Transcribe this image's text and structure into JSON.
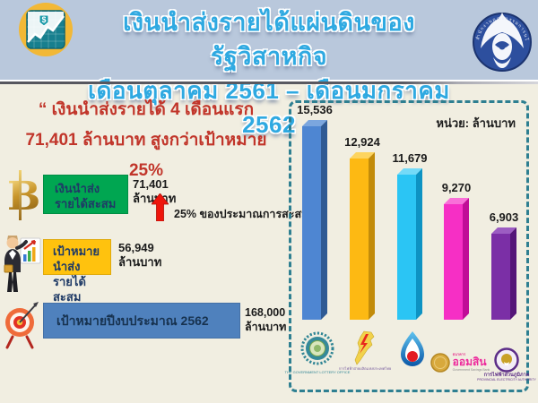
{
  "header": {
    "title_line1": "เงินนำส่งรายได้แผ่นดินของรัฐวิสาหกิจ",
    "title_line2": "เดือนตุลาคม 2561 – เดือนมกราคม 2562",
    "title_color": "#2fa9e1",
    "background_color": "#b9c8dc",
    "right_logo_ring_text": "สำนักงานคณะกรรมการนโยบายรัฐวิสาหกิจ"
  },
  "highlight": {
    "line1": "“ เงินนำส่งรายได้ 4 เดือนแรก",
    "line2": "71,401 ล้านบาท สูงกว่าเป้าหมาย 25%",
    "color": "#c1352a"
  },
  "summary_rows": [
    {
      "icon": "baht-coin-icon",
      "label_line1": "เงินนำส่ง",
      "label_line2": "รายได้สะสม",
      "value": "71,401",
      "unit": "ล้านบาท",
      "box_color": "#00a651"
    },
    {
      "icon": "businessman-chart-icon",
      "label_line1": "เป้าหมายนำส่ง",
      "label_line2": "รายได้สะสม",
      "value": "56,949",
      "unit": "ล้านบาท",
      "box_color": "#ffc20e"
    },
    {
      "icon": "target-dart-icon",
      "label_line1": "เป้าหมายปีงบประมาณ 2562",
      "label_line2": "",
      "value": "168,000",
      "unit": "ล้านบาท",
      "box_color": "#4f81bd"
    }
  ],
  "annotation": {
    "arrow_direction": "up",
    "arrow_color": "#ee160c",
    "text": "25% ของประมาณการสะสม"
  },
  "chart_data": {
    "type": "bar",
    "unit_label": "หน่วย: ล้านบาท",
    "border_color": "#2e7f91",
    "ylim": [
      0,
      16000
    ],
    "legend_position": "none",
    "categories": [
      "สำนักงานสลากกินแบ่งรัฐบาล",
      "การไฟฟ้าฝ่ายผลิตแห่งประเทศไทย",
      "ปตท.",
      "ธนาคารออมสิน",
      "การไฟฟ้าส่วนภูมิภาค"
    ],
    "values": [
      15536,
      12924,
      11679,
      9270,
      6903
    ],
    "bars": [
      {
        "company": "Government Lottery Office",
        "value": 15536,
        "label": "15,536",
        "front": "#4e86d2",
        "side": "#2f5a94",
        "top": "#7ba6de",
        "logo_caption": "THE GOVERNMENT LOTTERY OFFICE"
      },
      {
        "company": "EGAT",
        "value": 12924,
        "label": "12,924",
        "front": "#fdb913",
        "side": "#c28b0a",
        "top": "#fdd45f",
        "logo_caption": "การไฟฟ้าฝ่ายผลิตแห่งประเทศไทย"
      },
      {
        "company": "PTT",
        "value": 11679,
        "label": "11,679",
        "front": "#2bc5f4",
        "side": "#0e93c3",
        "top": "#74daf8",
        "logo_caption": ""
      },
      {
        "company": "Government Savings Bank",
        "value": 9270,
        "label": "9,270",
        "front": "#f62fc5",
        "side": "#c00d97",
        "top": "#f970d8",
        "logo_caption_top": "ธนาคาร",
        "logo_caption": "ออมสิน",
        "logo_caption_sub": "Government Savings Bank"
      },
      {
        "company": "Provincial Electricity Authority",
        "value": 6903,
        "label": "6,903",
        "front": "#7b2fa6",
        "side": "#541678",
        "top": "#9c5dc2",
        "logo_caption": "การไฟฟ้าส่วนภูมิภาค",
        "logo_caption_sub": "PROVINCIAL ELECTRICITY AUTHORITY"
      }
    ]
  }
}
